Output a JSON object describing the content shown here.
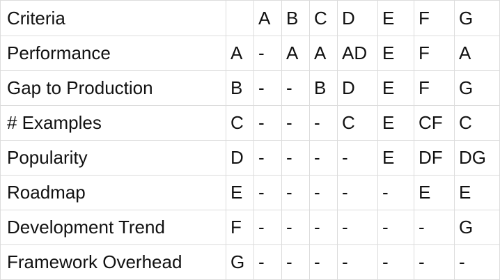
{
  "header": {
    "label": "Criteria",
    "code": "",
    "columns": [
      "A",
      "B",
      "C",
      "D",
      "E",
      "F",
      "G"
    ]
  },
  "rows": [
    {
      "label": "Performance",
      "code": "A",
      "cells": [
        "-",
        "A",
        "A",
        "AD",
        "E",
        "F",
        "A"
      ]
    },
    {
      "label": "Gap to Production",
      "code": "B",
      "cells": [
        "-",
        "-",
        "B",
        "D",
        "E",
        "F",
        "G"
      ]
    },
    {
      "label": "# Examples",
      "code": "C",
      "cells": [
        "-",
        "-",
        "-",
        "C",
        "E",
        "CF",
        "C"
      ]
    },
    {
      "label": "Popularity",
      "code": "D",
      "cells": [
        "-",
        "-",
        "-",
        "-",
        "E",
        "DF",
        "DG"
      ]
    },
    {
      "label": "Roadmap",
      "code": "E",
      "cells": [
        "-",
        "-",
        "-",
        "-",
        "-",
        "E",
        "E"
      ]
    },
    {
      "label": "Development Trend",
      "code": "F",
      "cells": [
        "-",
        "-",
        "-",
        "-",
        "-",
        "-",
        "G"
      ]
    },
    {
      "label": "Framework Overhead",
      "code": "G",
      "cells": [
        "-",
        "-",
        "-",
        "-",
        "-",
        "-",
        "-"
      ]
    }
  ]
}
